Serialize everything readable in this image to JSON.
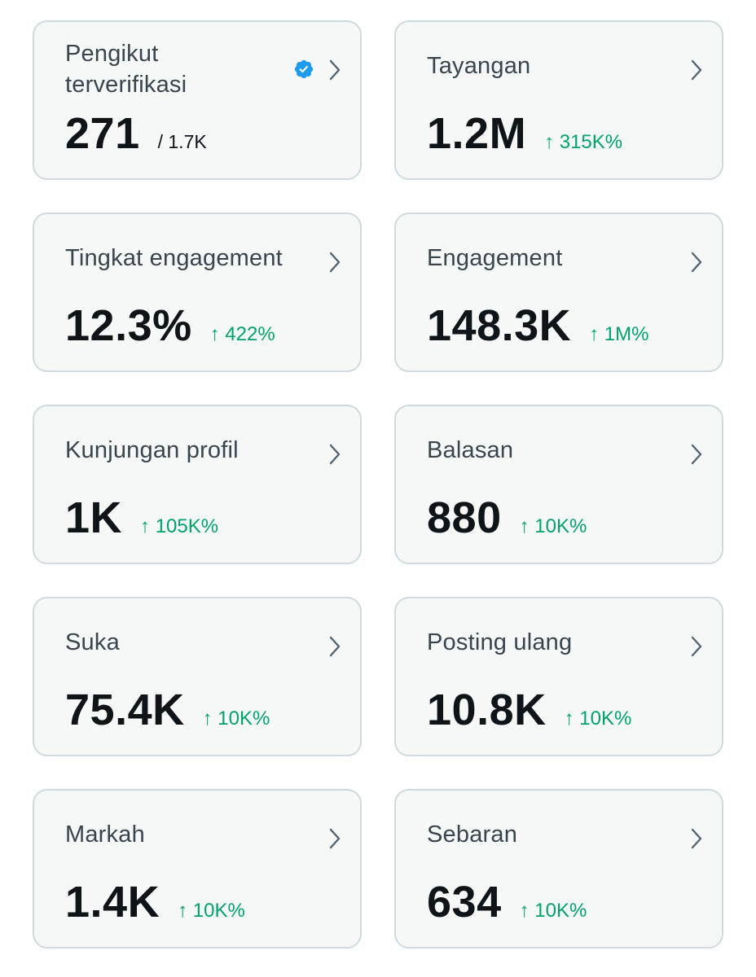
{
  "cards": [
    {
      "title": "Pengikut terverifikasi",
      "value": "271",
      "suffix": "/ 1.7K",
      "change": ""
    },
    {
      "title": "Tayangan",
      "value": "1.2M",
      "suffix": "",
      "change": "↑ 315K%"
    },
    {
      "title": "Tingkat engagement",
      "value": "12.3%",
      "suffix": "",
      "change": "↑ 422%"
    },
    {
      "title": "Engagement",
      "value": "148.3K",
      "suffix": "",
      "change": "↑ 1M%"
    },
    {
      "title": "Kunjungan profil",
      "value": "1K",
      "suffix": "",
      "change": "↑ 105K%"
    },
    {
      "title": "Balasan",
      "value": "880",
      "suffix": "",
      "change": "↑ 10K%"
    },
    {
      "title": "Suka",
      "value": "75.4K",
      "suffix": "",
      "change": "↑ 10K%"
    },
    {
      "title": "Posting ulang",
      "value": "10.8K",
      "suffix": "",
      "change": "↑ 10K%"
    },
    {
      "title": "Markah",
      "value": "1.4K",
      "suffix": "",
      "change": "↑ 10K%"
    },
    {
      "title": "Sebaran",
      "value": "634",
      "suffix": "",
      "change": "↑ 10K%"
    }
  ],
  "icons": {
    "chevron": "chevron-right-icon",
    "verified": "verified-badge-icon"
  },
  "colors": {
    "card_background": "#f6f8f8",
    "card_border": "#cfd9de",
    "positive_change": "#00a268",
    "verified_blue": "#1d9bf0",
    "chevron": "#536471"
  }
}
